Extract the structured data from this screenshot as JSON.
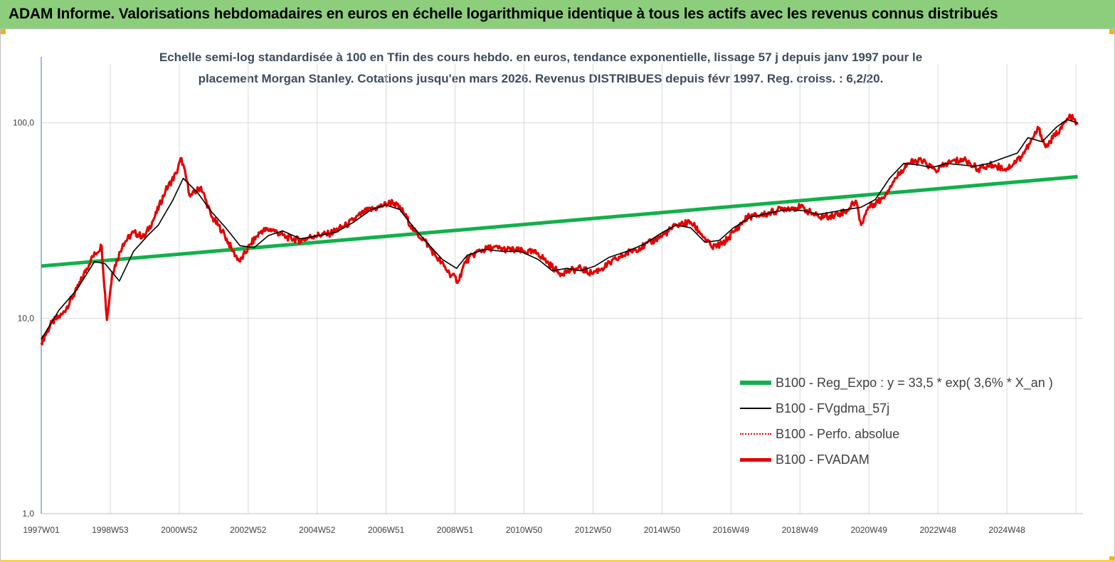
{
  "banner": {
    "title": "ADAM Informe. Valorisations hebdomadaires en euros en échelle logarithmique identique à tous les actifs avec les revenus connus distribués"
  },
  "chart_data": {
    "type": "line",
    "title": "Echelle semi-log standardisée à 100 en Tfin des cours hebdo. en euros, tendance exponentielle, lissage 57 j depuis janv 1997 pour le placement Morgan Stanley. Cotations jusqu'en mars 2026. Revenus DISTRIBUES depuis févr 1997. Reg. croiss. : 6,2/20.",
    "xlabel": "",
    "ylabel": "",
    "y_scale": "log",
    "ylim": [
      1,
      200
    ],
    "y_ticks": [
      "1,0",
      "10,0",
      "100,0"
    ],
    "x_ticks": [
      "1997W01",
      "1998W53",
      "2000W52",
      "2002W52",
      "2004W52",
      "2006W51",
      "2008W51",
      "2010W50",
      "2012W50",
      "2014W50",
      "2016W49",
      "2018W49",
      "2020W49",
      "2022W48",
      "2024W48"
    ],
    "grid": "vertical",
    "legend_position": "right",
    "colors": {
      "reg": "#12b04a",
      "fvgdma": "#000000",
      "perfo": "#e60000",
      "fvadam": "#e60000"
    },
    "series": [
      {
        "name": "B100 - Reg_Expo : y = 33,5 * exp( 3,6% *  X_an )",
        "x": [
          1997.0,
          2026.2
        ],
        "values": [
          18.5,
          53.0
        ]
      },
      {
        "name": "B100 - FVgdma_57j",
        "x": [
          1997.0,
          1997.5,
          1998.0,
          1998.5,
          1998.8,
          1999.2,
          1999.6,
          2000.0,
          2000.3,
          2000.7,
          2001.0,
          2001.4,
          2001.8,
          2002.2,
          2002.6,
          2003.0,
          2003.4,
          2003.8,
          2004.3,
          2004.8,
          2005.3,
          2005.8,
          2006.3,
          2006.7,
          2007.1,
          2007.5,
          2007.9,
          2008.3,
          2008.7,
          2009.0,
          2009.5,
          2010.0,
          2010.5,
          2011.0,
          2011.4,
          2011.8,
          2012.2,
          2012.6,
          2013.0,
          2013.5,
          2014.0,
          2014.5,
          2014.9,
          2015.3,
          2015.7,
          2016.1,
          2016.5,
          2017.0,
          2017.5,
          2018.0,
          2018.5,
          2018.9,
          2019.3,
          2019.7,
          2020.1,
          2020.5,
          2020.9,
          2021.3,
          2021.7,
          2022.1,
          2022.5,
          2022.9,
          2023.3,
          2023.7,
          2024.1,
          2024.5,
          2024.8,
          2025.2,
          2025.6,
          2025.9,
          2026.2
        ],
        "values": [
          7.8,
          11.0,
          14.0,
          19.5,
          19.0,
          15.5,
          22.0,
          26.5,
          30.0,
          40.0,
          52.0,
          44.0,
          35.0,
          29.0,
          23.5,
          23.0,
          26.5,
          28.0,
          25.5,
          26.5,
          27.5,
          31.0,
          36.0,
          38.0,
          36.0,
          29.0,
          24.0,
          20.0,
          18.0,
          21.0,
          22.5,
          22.0,
          22.0,
          20.0,
          17.5,
          18.0,
          17.5,
          18.5,
          20.5,
          22.0,
          24.0,
          27.5,
          30.0,
          29.0,
          24.5,
          25.0,
          29.0,
          33.0,
          34.5,
          36.0,
          35.5,
          34.0,
          35.0,
          36.0,
          37.0,
          40.5,
          52.0,
          62.0,
          61.0,
          59.0,
          62.0,
          61.0,
          60.0,
          62.0,
          66.0,
          70.0,
          84.0,
          80.0,
          95.0,
          104.0,
          100.0
        ]
      },
      {
        "name": "B100 - Perfo. absolue",
        "x": [
          1997.0,
          2026.2
        ],
        "values": [
          7.5,
          100.0
        ]
      },
      {
        "name": "B100 - FVADAM",
        "x": [
          1997.0,
          1997.3,
          1997.6,
          1998.0,
          1998.4,
          1998.7,
          1998.85,
          1999.0,
          1999.3,
          1999.6,
          1999.9,
          2000.2,
          2000.5,
          2000.8,
          2000.95,
          2001.2,
          2001.5,
          2001.8,
          2002.1,
          2002.4,
          2002.6,
          2002.9,
          2003.2,
          2003.5,
          2003.9,
          2004.3,
          2004.7,
          2005.1,
          2005.6,
          2006.1,
          2006.5,
          2006.9,
          2007.2,
          2007.5,
          2007.8,
          2008.1,
          2008.5,
          2008.75,
          2008.95,
          2009.3,
          2009.7,
          2010.1,
          2010.6,
          2011.0,
          2011.3,
          2011.6,
          2011.9,
          2012.2,
          2012.5,
          2012.8,
          2013.2,
          2013.6,
          2014.0,
          2014.5,
          2014.9,
          2015.3,
          2015.6,
          2015.9,
          2016.2,
          2016.5,
          2016.9,
          2017.4,
          2017.9,
          2018.4,
          2018.9,
          2019.3,
          2019.7,
          2019.95,
          2020.1,
          2020.3,
          2020.7,
          2021.0,
          2021.4,
          2021.8,
          2022.2,
          2022.6,
          2023.0,
          2023.4,
          2023.8,
          2024.2,
          2024.6,
          2024.85,
          2025.1,
          2025.3,
          2025.7,
          2026.0,
          2026.2
        ],
        "values": [
          7.5,
          9.5,
          10.5,
          14.0,
          20.0,
          23.5,
          9.8,
          17.0,
          24.0,
          27.5,
          26.0,
          33.0,
          45.0,
          55.0,
          66.0,
          42.0,
          47.0,
          33.0,
          28.0,
          22.0,
          19.5,
          24.0,
          28.0,
          28.5,
          26.0,
          25.0,
          26.5,
          27.0,
          30.0,
          35.0,
          37.0,
          39.5,
          35.0,
          28.0,
          25.0,
          21.0,
          17.0,
          15.5,
          19.5,
          22.0,
          23.0,
          22.5,
          22.0,
          21.5,
          19.0,
          17.0,
          17.5,
          18.0,
          17.0,
          18.0,
          20.0,
          22.0,
          23.5,
          26.5,
          30.0,
          31.0,
          27.0,
          23.0,
          24.0,
          27.5,
          33.0,
          34.0,
          36.5,
          37.0,
          33.0,
          33.5,
          35.5,
          40.0,
          30.0,
          37.0,
          41.0,
          50.0,
          62.0,
          64.0,
          57.0,
          63.0,
          65.0,
          58.0,
          61.0,
          58.0,
          67.0,
          78.0,
          94.0,
          75.0,
          93.0,
          108.0,
          98.0
        ]
      }
    ]
  },
  "legend": {
    "items": [
      {
        "label": "B100 - Reg_Expo : y = 33,5 * exp( 3,6% *  X_an )"
      },
      {
        "label": "B100 - FVgdma_57j"
      },
      {
        "label": "B100 - Perfo. absolue"
      },
      {
        "label": "B100 - FVADAM"
      }
    ]
  }
}
